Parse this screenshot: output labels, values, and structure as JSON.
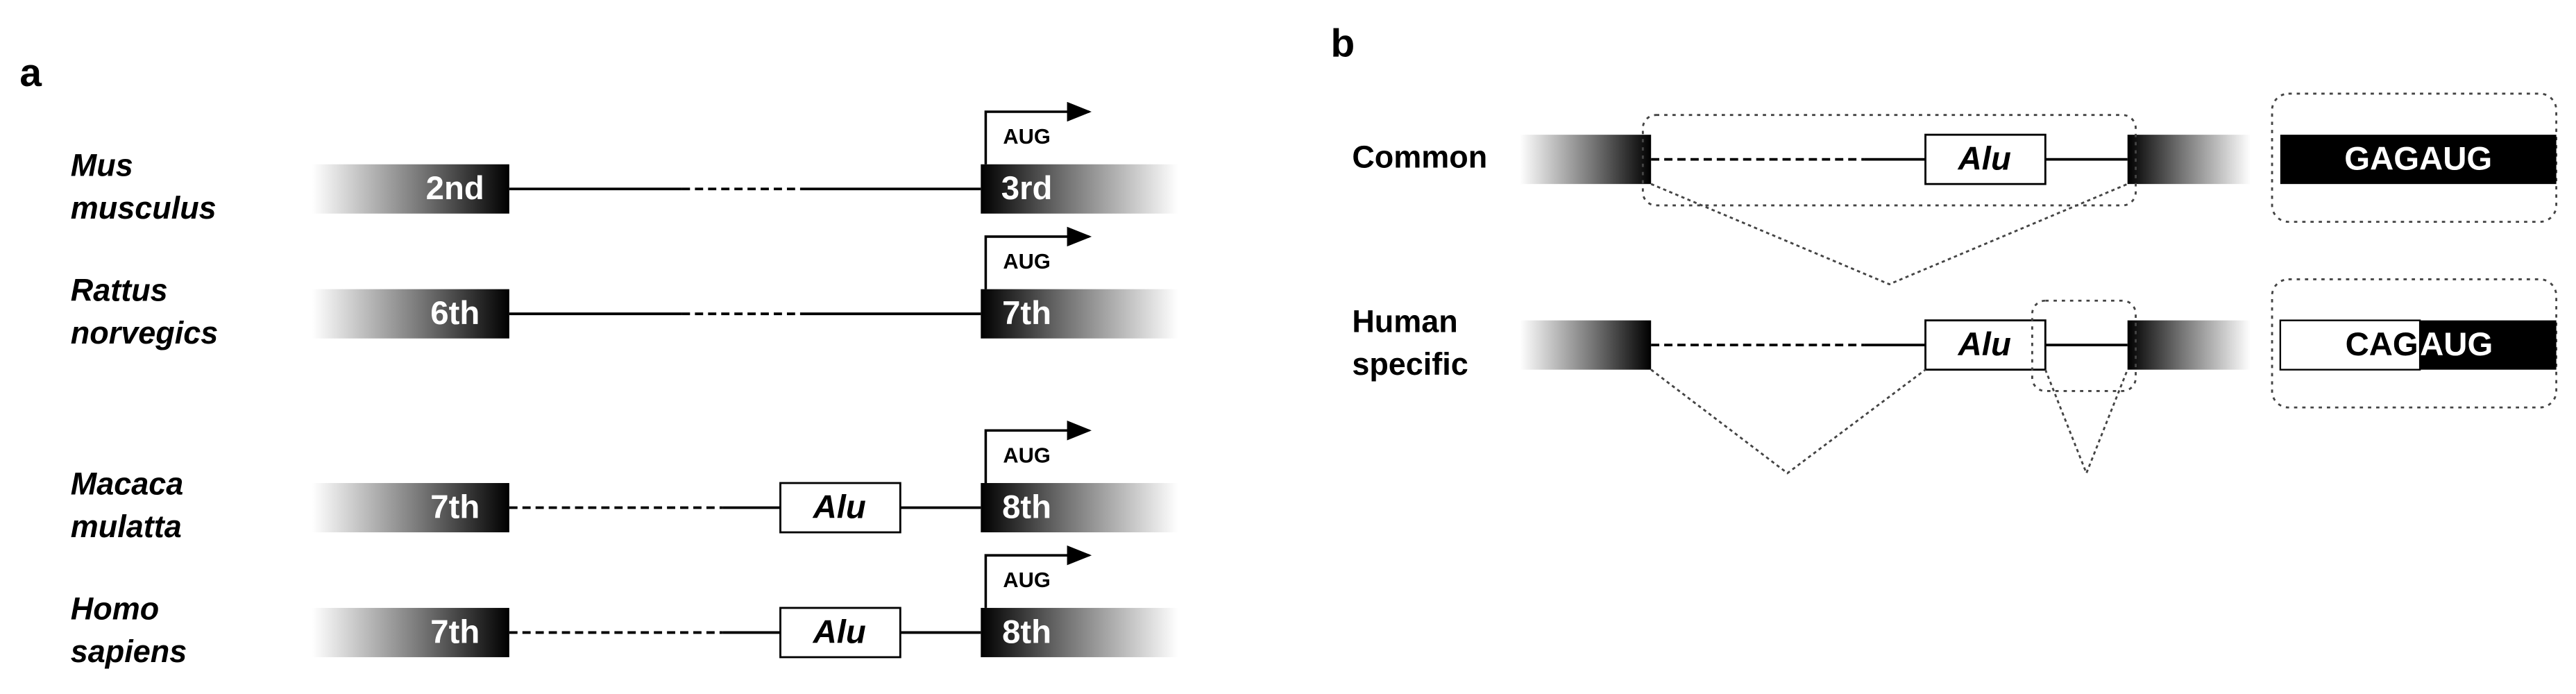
{
  "panel_a": {
    "label": "a",
    "rows": [
      {
        "species": [
          "Mus",
          "musculus"
        ],
        "exon_left": "2nd",
        "exon_right": "3rd",
        "start_codon": "AUG"
      },
      {
        "species": [
          "Rattus",
          "norvegics"
        ],
        "exon_left": "6th",
        "exon_right": "7th",
        "start_codon": "AUG"
      },
      {
        "species": [
          "Macaca",
          "mulatta"
        ],
        "exon_left": "7th",
        "exon_right": "8th",
        "start_codon": "AUG",
        "insert": "Alu"
      },
      {
        "species": [
          "Homo",
          "sapiens"
        ],
        "exon_left": "7th",
        "exon_right": "8th",
        "start_codon": "AUG",
        "insert": "Alu"
      }
    ]
  },
  "panel_b": {
    "label": "b",
    "rows": [
      {
        "name": [
          "Common"
        ],
        "insert": "Alu",
        "sequence": [
          "GAGAUG"
        ]
      },
      {
        "name": [
          "Human",
          "specific"
        ],
        "insert": "Alu",
        "sequence": [
          "CAG",
          "AUG"
        ]
      }
    ]
  }
}
